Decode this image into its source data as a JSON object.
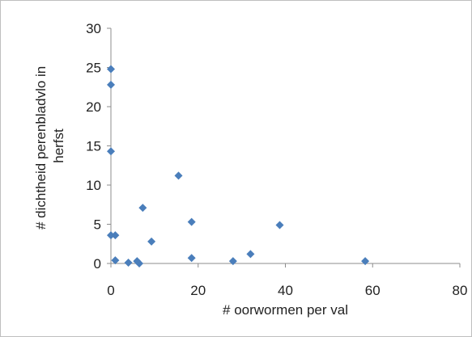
{
  "chart_data": {
    "type": "scatter",
    "title": "",
    "xlabel": "# oorwormen per val",
    "ylabel_lines": [
      "# dichtheid perenbladvlo in",
      "herfst"
    ],
    "xlim": [
      0,
      80
    ],
    "ylim": [
      0,
      30
    ],
    "x_ticks": [
      0,
      20,
      40,
      60,
      80
    ],
    "y_ticks": [
      0,
      5,
      10,
      15,
      20,
      25,
      30
    ],
    "grid": false,
    "legend": "none",
    "marker_color": "#4a7ebb",
    "series": [
      {
        "points": [
          {
            "x": 0,
            "y": 24.8
          },
          {
            "x": 0,
            "y": 22.8
          },
          {
            "x": 0,
            "y": 14.3
          },
          {
            "x": 0,
            "y": 3.6
          },
          {
            "x": 1,
            "y": 3.6
          },
          {
            "x": 1,
            "y": 0.4
          },
          {
            "x": 4,
            "y": 0.1
          },
          {
            "x": 6,
            "y": 0.3
          },
          {
            "x": 6.5,
            "y": 0.0
          },
          {
            "x": 7.3,
            "y": 7.1
          },
          {
            "x": 9.3,
            "y": 2.8
          },
          {
            "x": 15.5,
            "y": 11.2
          },
          {
            "x": 18.5,
            "y": 5.3
          },
          {
            "x": 18.5,
            "y": 0.7
          },
          {
            "x": 28,
            "y": 0.3
          },
          {
            "x": 32,
            "y": 1.2
          },
          {
            "x": 38.7,
            "y": 4.9
          },
          {
            "x": 58.3,
            "y": 0.3
          }
        ]
      }
    ]
  }
}
